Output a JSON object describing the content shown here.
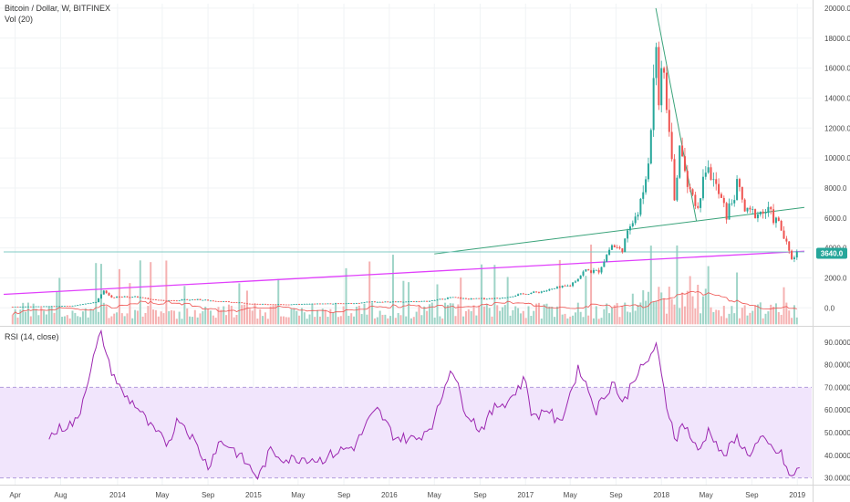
{
  "header": {
    "symbol": "Bitcoin / Dollar, W, BITFINEX",
    "volume_indicator": "Vol (20)"
  },
  "rsi_panel": {
    "label": "RSI (14, close)"
  },
  "colors": {
    "up": "#26a69a",
    "down": "#ef5350",
    "vol_up": "#9ed4c7",
    "vol_down": "#f5b1b1",
    "trendline_green": "#3aa37a",
    "support_magenta": "#e040fb",
    "vol_ma": "#ef5350",
    "rsi_line": "#9c27b0",
    "rsi_band": "#f1e5fc",
    "price_badge": "#26a69a"
  },
  "price_badge": "3640.0",
  "chart_data": [
    {
      "type": "candlestick",
      "title": "Bitcoin / Dollar, W, BITFINEX",
      "x_axis": {
        "start": "2013-03",
        "end": "2019-01",
        "tick_labels": [
          "Apr",
          "Aug",
          "2014",
          "May",
          "Sep",
          "2015",
          "May",
          "Sep",
          "2016",
          "May",
          "Sep",
          "2017",
          "May",
          "Sep",
          "2018",
          "May",
          "Sep",
          "2019"
        ],
        "tick_dates": [
          "2013-04-01",
          "2013-08-01",
          "2014-01-01",
          "2014-05-01",
          "2014-09-01",
          "2015-01-01",
          "2015-05-01",
          "2015-09-01",
          "2016-01-01",
          "2016-05-01",
          "2016-09-01",
          "2017-01-01",
          "2017-05-01",
          "2017-09-01",
          "2018-01-01",
          "2018-05-01",
          "2018-09-01",
          "2019-01-01"
        ]
      },
      "y_axis": {
        "ylim": [
          -1200,
          20300
        ],
        "tick_labels": [
          "0.0",
          "2000.0",
          "4000.0",
          "6000.0",
          "8000.0",
          "10000.0",
          "12000.0",
          "14000.0",
          "16000.0",
          "18000.0",
          "20000.0"
        ],
        "tick_values": [
          0,
          2000,
          4000,
          6000,
          8000,
          10000,
          12000,
          14000,
          16000,
          18000,
          20000
        ]
      },
      "last_price": 3640.0,
      "price_points": {
        "dates": [
          "2013-03-25",
          "2013-06-01",
          "2013-09-01",
          "2013-11-04",
          "2013-11-25",
          "2013-12-16",
          "2014-02-15",
          "2014-05-01",
          "2014-08-01",
          "2014-11-01",
          "2015-01-12",
          "2015-04-01",
          "2015-07-01",
          "2015-10-01",
          "2015-11-05",
          "2016-01-15",
          "2016-04-15",
          "2016-06-15",
          "2016-08-01",
          "2016-10-15",
          "2017-01-01",
          "2017-02-15",
          "2017-05-01",
          "2017-06-10",
          "2017-07-15",
          "2017-08-20",
          "2017-09-15",
          "2017-10-15",
          "2017-11-15",
          "2017-12-01",
          "2017-12-17",
          "2017-12-25",
          "2018-01-07",
          "2018-02-05",
          "2018-02-20",
          "2018-03-05",
          "2018-04-05",
          "2018-05-05",
          "2018-06-25",
          "2018-07-25",
          "2018-08-15",
          "2018-10-15",
          "2018-11-15",
          "2018-12-15",
          "2019-01-01"
        ],
        "values": [
          80,
          95,
          130,
          400,
          1100,
          700,
          750,
          480,
          560,
          380,
          250,
          230,
          280,
          300,
          400,
          410,
          440,
          700,
          590,
          640,
          950,
          1100,
          1500,
          2500,
          2400,
          4200,
          3800,
          5700,
          7500,
          11000,
          19000,
          14000,
          16000,
          7500,
          11000,
          9000,
          6800,
          9500,
          6200,
          8200,
          6300,
          6400,
          5500,
          3300,
          3700
        ]
      },
      "trendlines": [
        {
          "from": [
            "2013-03-01",
            900
          ],
          "to": [
            "2019-01-20",
            3780
          ]
        },
        {
          "from": [
            "2016-05-01",
            3600
          ],
          "to": [
            "2019-01-20",
            6700
          ]
        },
        {
          "from": [
            "2017-12-17",
            20000
          ],
          "to": [
            "2018-04-05",
            5800
          ]
        },
        {
          "from": [
            "2013-03-01",
            3730
          ],
          "to": [
            "2019-01-20",
            3730
          ]
        }
      ],
      "volume": {
        "indicator": "Vol (20)",
        "ma_period": 20
      }
    },
    {
      "type": "line",
      "title": "RSI (14, close)",
      "ylim": [
        27,
        96
      ],
      "tick_labels": [
        "30.0000",
        "40.0000",
        "50.0000",
        "60.0000",
        "70.0000",
        "80.0000",
        "90.0000"
      ],
      "tick_values": [
        30,
        40,
        50,
        60,
        70,
        80,
        90
      ],
      "band": {
        "lower": 30,
        "upper": 70
      },
      "series": [
        {
          "dates": [
            "2013-07-01",
            "2013-08-01",
            "2013-09-15",
            "2013-10-15",
            "2013-11-18",
            "2013-12-09",
            "2014-01-15",
            "2014-02-20",
            "2014-04-01",
            "2014-05-15",
            "2014-06-15",
            "2014-07-20",
            "2014-09-01",
            "2014-10-01",
            "2014-11-01",
            "2014-12-10",
            "2015-01-15",
            "2015-02-15",
            "2015-04-01",
            "2015-05-15",
            "2015-07-01",
            "2015-08-20",
            "2015-10-01",
            "2015-11-05",
            "2015-12-01",
            "2016-01-15",
            "2016-03-15",
            "2016-05-01",
            "2016-06-15",
            "2016-07-20",
            "2016-09-01",
            "2016-10-15",
            "2016-11-15",
            "2017-01-01",
            "2017-01-20",
            "2017-03-01",
            "2017-04-01",
            "2017-05-25",
            "2017-07-10",
            "2017-08-25",
            "2017-09-20",
            "2017-10-20",
            "2017-11-20",
            "2017-12-17",
            "2018-01-15",
            "2018-02-10",
            "2018-03-01",
            "2018-04-10",
            "2018-05-10",
            "2018-06-15",
            "2018-07-25",
            "2018-08-20",
            "2018-09-25",
            "2018-10-25",
            "2018-11-20",
            "2018-12-15",
            "2019-01-10"
          ],
          "values": [
            48,
            52,
            55,
            75,
            95,
            80,
            67,
            62,
            52,
            45,
            57,
            48,
            35,
            46,
            44,
            37,
            30,
            42,
            38,
            39,
            38,
            42,
            44,
            55,
            60,
            48,
            47,
            55,
            80,
            61,
            51,
            62,
            64,
            74,
            56,
            61,
            53,
            79,
            60,
            73,
            62,
            75,
            80,
            89,
            62,
            47,
            55,
            41,
            52,
            39,
            48,
            40,
            47,
            43,
            40,
            29,
            36
          ]
        }
      ]
    }
  ]
}
